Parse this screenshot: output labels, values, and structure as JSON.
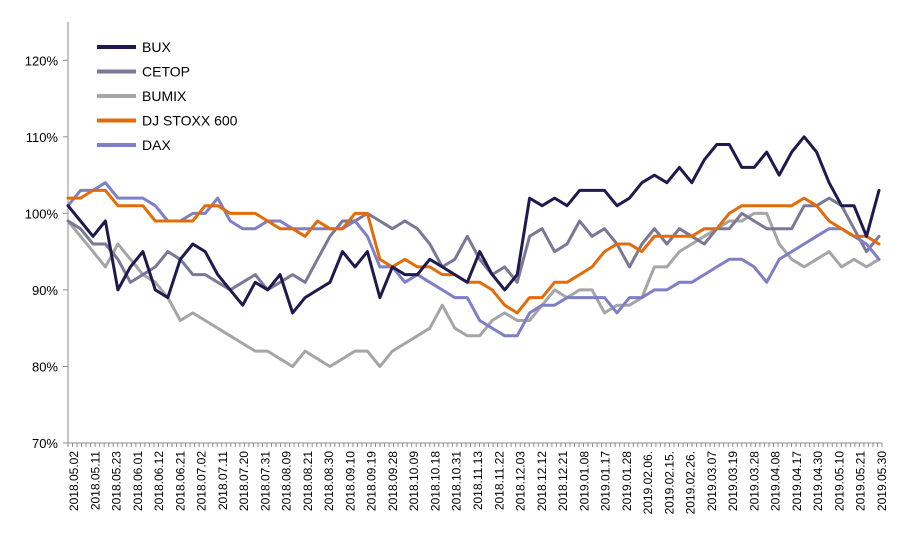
{
  "chart_data": {
    "type": "line",
    "title": "",
    "xlabel": "",
    "ylabel": "",
    "ylim": [
      70,
      125
    ],
    "y_ticks": [
      "70%",
      "80%",
      "90%",
      "100%",
      "110%",
      "120%"
    ],
    "y_tick_values": [
      70,
      80,
      90,
      100,
      110,
      120
    ],
    "x_labels": [
      "2018.05.02",
      "2018.05.11",
      "2018.05.23",
      "2018.06.01",
      "2018.06.12",
      "2018.06.21",
      "2018.07.02",
      "2018.07.11",
      "2018.07.20",
      "2018.07.31",
      "2018.08.09",
      "2018.08.21",
      "2018.08.30",
      "2018.09.10",
      "2018.09.19",
      "2018.09.28",
      "2018.10.09",
      "2018.10.18",
      "2018.10.31",
      "2018.11.13",
      "2018.11.22",
      "2018.12.03",
      "2018.12.12",
      "2018.12.21",
      "2019.01.08",
      "2019.01.17",
      "2019.01.28",
      "2019.02.06.",
      "2019.02.15.",
      "2019.02.26.",
      "2019.03.07",
      "2019.03.19",
      "2019.03.28",
      "2019.04.08",
      "2019.04.17",
      "2019.04.30",
      "2019.05.10",
      "2019.05.21",
      "2019.05.30"
    ],
    "grid": false,
    "legend_position": "top-left",
    "colors": {
      "axis": "#8c8c8c",
      "text": "#000000"
    },
    "series": [
      {
        "name": "BUX",
        "color": "#1f1a4d",
        "values": [
          101,
          99,
          97,
          99,
          90,
          93,
          95,
          90,
          89,
          94,
          96,
          95,
          92,
          90,
          88,
          91,
          90,
          92,
          87,
          89,
          90,
          91,
          95,
          93,
          95,
          89,
          93,
          92,
          92,
          94,
          93,
          92,
          91,
          95,
          92,
          90,
          92,
          102,
          101,
          102,
          101,
          103,
          103,
          103,
          101,
          102,
          104,
          105,
          104,
          106,
          104,
          107,
          109,
          109,
          106,
          106,
          108,
          105,
          108,
          110,
          108,
          104,
          101,
          101,
          97,
          103
        ]
      },
      {
        "name": "CETOP",
        "color": "#7b7796",
        "values": [
          99,
          98,
          96,
          96,
          94,
          91,
          92,
          93,
          95,
          94,
          92,
          92,
          91,
          90,
          91,
          92,
          90,
          91,
          92,
          91,
          94,
          97,
          99,
          99,
          100,
          99,
          98,
          99,
          98,
          96,
          93,
          94,
          97,
          94,
          92,
          93,
          91,
          97,
          98,
          95,
          96,
          99,
          97,
          98,
          96,
          93,
          96,
          98,
          96,
          98,
          97,
          96,
          98,
          98,
          100,
          99,
          98,
          98,
          98,
          101,
          101,
          102,
          101,
          98,
          95,
          97
        ]
      },
      {
        "name": "BUMIX",
        "color": "#a5a5a5",
        "values": [
          99,
          97,
          95,
          93,
          96,
          94,
          92,
          91,
          89,
          86,
          87,
          86,
          85,
          84,
          83,
          82,
          82,
          81,
          80,
          82,
          81,
          80,
          81,
          82,
          82,
          80,
          82,
          83,
          84,
          85,
          88,
          85,
          84,
          84,
          86,
          87,
          86,
          86,
          88,
          90,
          89,
          90,
          90,
          87,
          88,
          88,
          89,
          93,
          93,
          95,
          96,
          97,
          98,
          99,
          99,
          100,
          100,
          96,
          94,
          93,
          94,
          95,
          93,
          94,
          93,
          94
        ]
      },
      {
        "name": "DJ STOXX 600",
        "color": "#e36c0a",
        "values": [
          102,
          102,
          103,
          103,
          101,
          101,
          101,
          99,
          99,
          99,
          99,
          101,
          101,
          100,
          100,
          100,
          99,
          98,
          98,
          97,
          99,
          98,
          98,
          100,
          100,
          94,
          93,
          94,
          93,
          93,
          92,
          92,
          91,
          91,
          90,
          88,
          87,
          89,
          89,
          91,
          91,
          92,
          93,
          95,
          96,
          96,
          95,
          97,
          97,
          97,
          97,
          98,
          98,
          100,
          101,
          101,
          101,
          101,
          101,
          102,
          101,
          99,
          98,
          97,
          97,
          96
        ]
      },
      {
        "name": "DAX",
        "color": "#7f7fc6",
        "values": [
          101,
          103,
          103,
          104,
          102,
          102,
          102,
          101,
          99,
          99,
          100,
          100,
          102,
          99,
          98,
          98,
          99,
          99,
          98,
          98,
          98,
          98,
          98,
          99,
          97,
          93,
          93,
          91,
          92,
          91,
          90,
          89,
          89,
          86,
          85,
          84,
          84,
          87,
          88,
          88,
          89,
          89,
          89,
          89,
          87,
          89,
          89,
          90,
          90,
          91,
          91,
          92,
          93,
          94,
          94,
          93,
          91,
          94,
          95,
          96,
          97,
          98,
          98,
          97,
          96,
          94
        ]
      }
    ]
  }
}
